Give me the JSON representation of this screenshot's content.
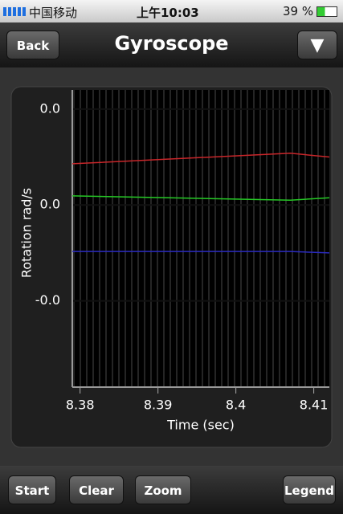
{
  "status_bar": {
    "carrier": "中国移动",
    "time": "上午10:03",
    "battery": "39 %"
  },
  "nav_bar": {
    "back": "Back",
    "title": "Gyroscope"
  },
  "chart_data": {
    "type": "line",
    "x_label": "Time (sec)",
    "y_label": "Rotation rad/s",
    "x": [
      8.379,
      8.407,
      8.412
    ],
    "series": [
      {
        "color": "#c8262a",
        "values": [
          0.0086,
          0.0108,
          0.01
        ]
      },
      {
        "color": "#25c925",
        "values": [
          0.0019,
          0.001,
          0.0015
        ]
      },
      {
        "color": "#2b2bc0",
        "values": [
          -0.0097,
          -0.0097,
          -0.01
        ]
      }
    ],
    "xlim": [
      8.379,
      8.412
    ],
    "xticks": [
      8.38,
      8.39,
      8.4,
      8.41
    ],
    "ylim": [
      -0.038,
      0.024
    ],
    "yticks": [
      {
        "value": 0.02,
        "label": "0.0"
      },
      {
        "value": 0,
        "label": "0.0"
      },
      {
        "value": -0.02,
        "label": "-0.0"
      }
    ],
    "grid": true
  },
  "toolbar": {
    "buttons": [
      "Start",
      "Clear",
      "Zoom",
      "Legend"
    ]
  }
}
